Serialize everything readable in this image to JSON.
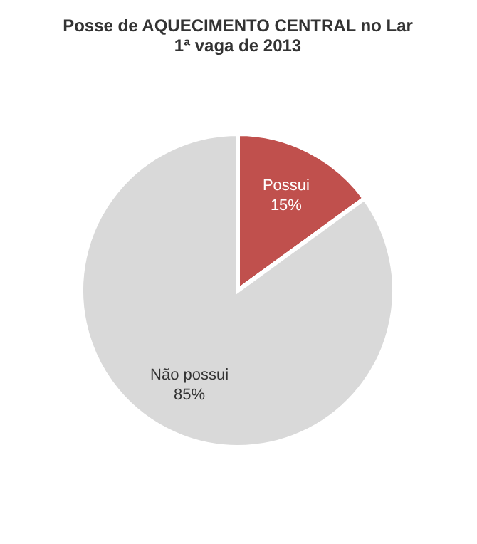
{
  "chart_data": {
    "type": "pie",
    "title": [
      "Posse de AQUECIMENTO CENTRAL no Lar",
      "1ª vaga de 2013"
    ],
    "categories": [
      "Possui",
      "Não possui"
    ],
    "values": [
      15,
      85
    ],
    "value_labels": [
      "15%",
      "85%"
    ],
    "colors": [
      "#c0504d",
      "#d9d9d9"
    ],
    "legend": false
  }
}
